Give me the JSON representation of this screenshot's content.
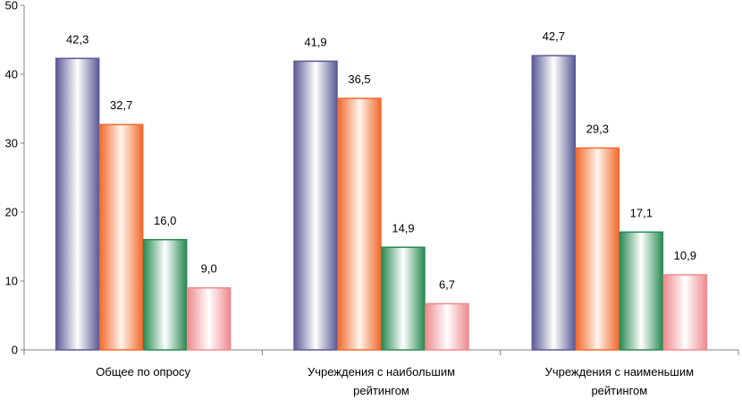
{
  "chart_data": {
    "type": "bar",
    "title": "",
    "xlabel": "",
    "ylabel": "",
    "ylim": [
      0,
      50
    ],
    "yticks": [
      "0",
      "10",
      "20",
      "30",
      "40",
      "50"
    ],
    "grid": false,
    "categories": [
      [
        "Общее по опросу"
      ],
      [
        "Учреждения с наибольшим",
        "рейтингом"
      ],
      [
        "Учреждения с наименьшим",
        "рейтингом"
      ]
    ],
    "series": [
      {
        "name": "series-1",
        "color": "#5b5b96",
        "values": [
          42.3,
          41.9,
          42.7
        ],
        "labels": [
          "42,3",
          "41,9",
          "42,7"
        ]
      },
      {
        "name": "series-2",
        "color": "#f06a2c",
        "values": [
          32.7,
          36.5,
          29.3
        ],
        "labels": [
          "32,7",
          "36,5",
          "29,3"
        ]
      },
      {
        "name": "series-3",
        "color": "#2a8a52",
        "values": [
          16.0,
          14.9,
          17.1
        ],
        "labels": [
          "16,0",
          "14,9",
          "17,1"
        ]
      },
      {
        "name": "series-4",
        "color": "#ef8a8e",
        "values": [
          9.0,
          6.7,
          10.9
        ],
        "labels": [
          "9,0",
          "6,7",
          "10,9"
        ]
      }
    ]
  }
}
